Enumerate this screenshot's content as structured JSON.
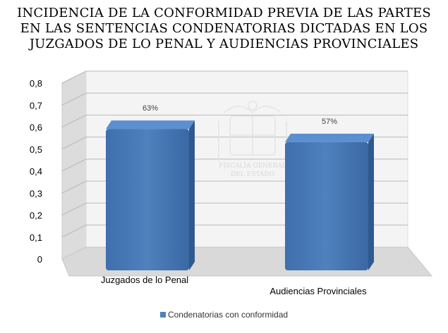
{
  "chart_data": {
    "type": "bar",
    "title": [
      "INCIDENCIA DE LA CONFORMIDAD PREVIA DE LAS PARTES",
      "EN LAS SENTENCIAS CONDENATORIAS DICTADAS EN LOS",
      "JUZGADOS DE LO PENAL Y AUDIENCIAS PROVINCIALES"
    ],
    "categories": [
      "Juzgados de lo Penal",
      "Audiencias Provinciales"
    ],
    "series": [
      {
        "name": "Condenatorias con conformidad",
        "values": [
          0.63,
          0.57
        ],
        "labels": [
          "63%",
          "57%"
        ]
      }
    ],
    "yticks": [
      "0",
      "0,1",
      "0,2",
      "0,3",
      "0,4",
      "0,5",
      "0,6",
      "0,7",
      "0,8"
    ],
    "ylim": [
      0,
      0.8
    ],
    "grid": true,
    "legend": "bottom",
    "watermark": [
      "FISCALÍA GENERAL",
      "DEL ESTADO"
    ],
    "colors": {
      "bar": "#4f81bd",
      "bar_top": "#5b8fd0",
      "bar_side": "#2f5a8f",
      "wall": "#f4f4f4",
      "floor": "#d9d9d9"
    }
  }
}
